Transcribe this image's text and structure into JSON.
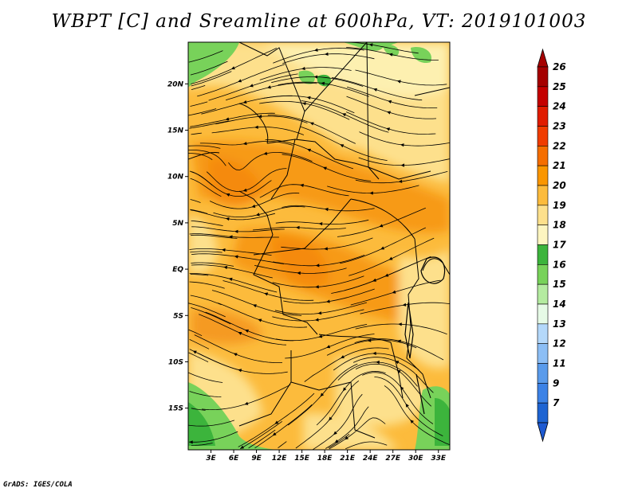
{
  "title": "WBPT [C] and Sreamline at 600hPa, VT: 2019101003",
  "credit": "GrADS: IGES/COLA",
  "map": {
    "lat_range": [
      -19.5,
      24.5
    ],
    "lon_range": [
      0,
      34.5
    ],
    "lat_ticks": [
      {
        "value": 20,
        "label": "20N"
      },
      {
        "value": 15,
        "label": "15N"
      },
      {
        "value": 10,
        "label": "10N"
      },
      {
        "value": 5,
        "label": "5N"
      },
      {
        "value": 0,
        "label": "EQ"
      },
      {
        "value": -5,
        "label": "5S"
      },
      {
        "value": -10,
        "label": "10S"
      },
      {
        "value": -15,
        "label": "15S"
      }
    ],
    "lon_ticks": [
      {
        "value": 3,
        "label": "3E"
      },
      {
        "value": 6,
        "label": "6E"
      },
      {
        "value": 9,
        "label": "9E"
      },
      {
        "value": 12,
        "label": "12E"
      },
      {
        "value": 15,
        "label": "15E"
      },
      {
        "value": 18,
        "label": "18E"
      },
      {
        "value": 21,
        "label": "21E"
      },
      {
        "value": 24,
        "label": "24E"
      },
      {
        "value": 27,
        "label": "27E"
      },
      {
        "value": 30,
        "label": "30E"
      },
      {
        "value": 33,
        "label": "33E"
      }
    ]
  },
  "colorbar": {
    "levels": [
      {
        "label": "26",
        "color": "#a50000"
      },
      {
        "label": "25",
        "color": "#c40000"
      },
      {
        "label": "24",
        "color": "#e01c00"
      },
      {
        "label": "23",
        "color": "#f03c00"
      },
      {
        "label": "22",
        "color": "#f56e00"
      },
      {
        "label": "21",
        "color": "#fa9600"
      },
      {
        "label": "20",
        "color": "#fcbb3c"
      },
      {
        "label": "19",
        "color": "#fde08c"
      },
      {
        "label": "18",
        "color": "#fdf5c0"
      },
      {
        "label": "17",
        "color": "#3cb43c"
      },
      {
        "label": "16",
        "color": "#78d25a"
      },
      {
        "label": "15",
        "color": "#b4eba0"
      },
      {
        "label": "14",
        "color": "#e6fae6"
      },
      {
        "label": "13",
        "color": "#b4d8fa"
      },
      {
        "label": "12",
        "color": "#8cbef5"
      },
      {
        "label": "11",
        "color": "#5a9beb"
      },
      {
        "label": "9",
        "color": "#3c82e6"
      },
      {
        "label": "7",
        "color": "#1e64d2"
      }
    ],
    "under_color": "#1e5ad2"
  }
}
